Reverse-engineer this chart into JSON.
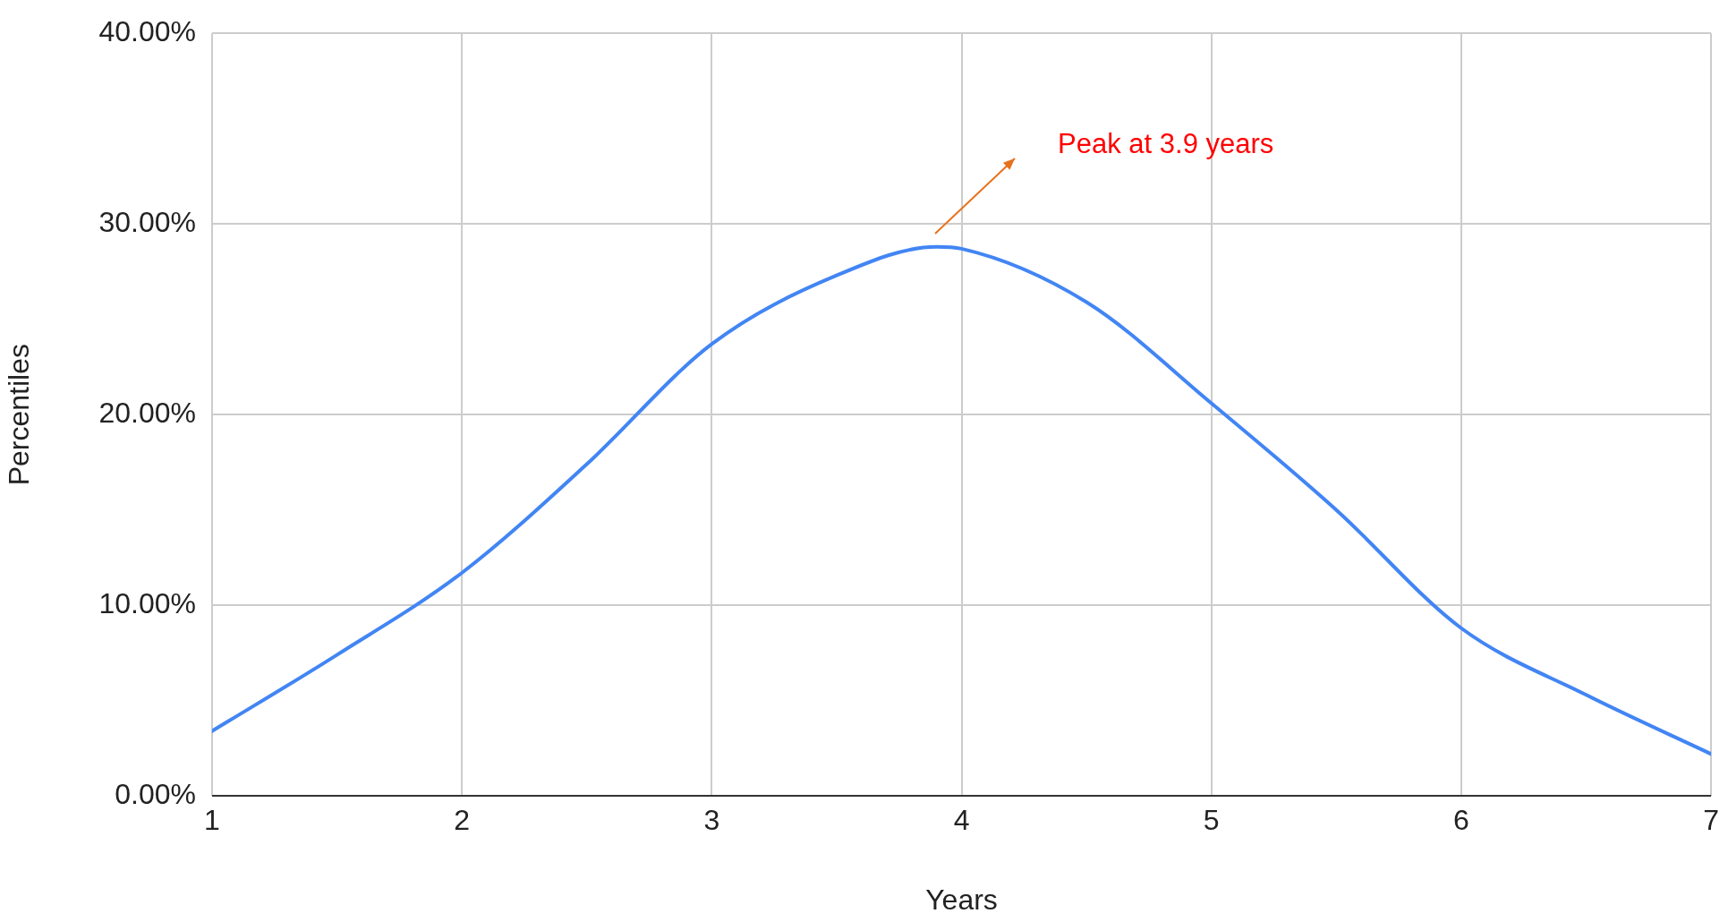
{
  "chart_data": {
    "type": "line",
    "xlabel": "Years",
    "ylabel": "Percentiles",
    "x": [
      1,
      1.5,
      2,
      2.5,
      3,
      3.5,
      3.9,
      4,
      4.5,
      5,
      5.5,
      6,
      6.5,
      7
    ],
    "series": [
      {
        "color": "#4285f4",
        "values": [
          3.4,
          7.4,
          11.7,
          17.4,
          23.7,
          27.3,
          28.8,
          28.7,
          25.9,
          20.6,
          15.0,
          8.8,
          5.3,
          2.2
        ]
      }
    ],
    "xlim": [
      1,
      7
    ],
    "xticks": [
      1,
      2,
      3,
      4,
      5,
      6,
      7
    ],
    "ylim": [
      0,
      40
    ],
    "yticks": [
      {
        "value": 0,
        "label": "0.00%"
      },
      {
        "value": 10,
        "label": "10.00%"
      },
      {
        "value": 20,
        "label": "20.00%"
      },
      {
        "value": 30,
        "label": "30.00%"
      },
      {
        "value": 40,
        "label": "40.00%"
      }
    ],
    "grid": true,
    "marker": "none",
    "line_style": "solid",
    "annotations": [
      "Peak at 3.9 years"
    ]
  }
}
